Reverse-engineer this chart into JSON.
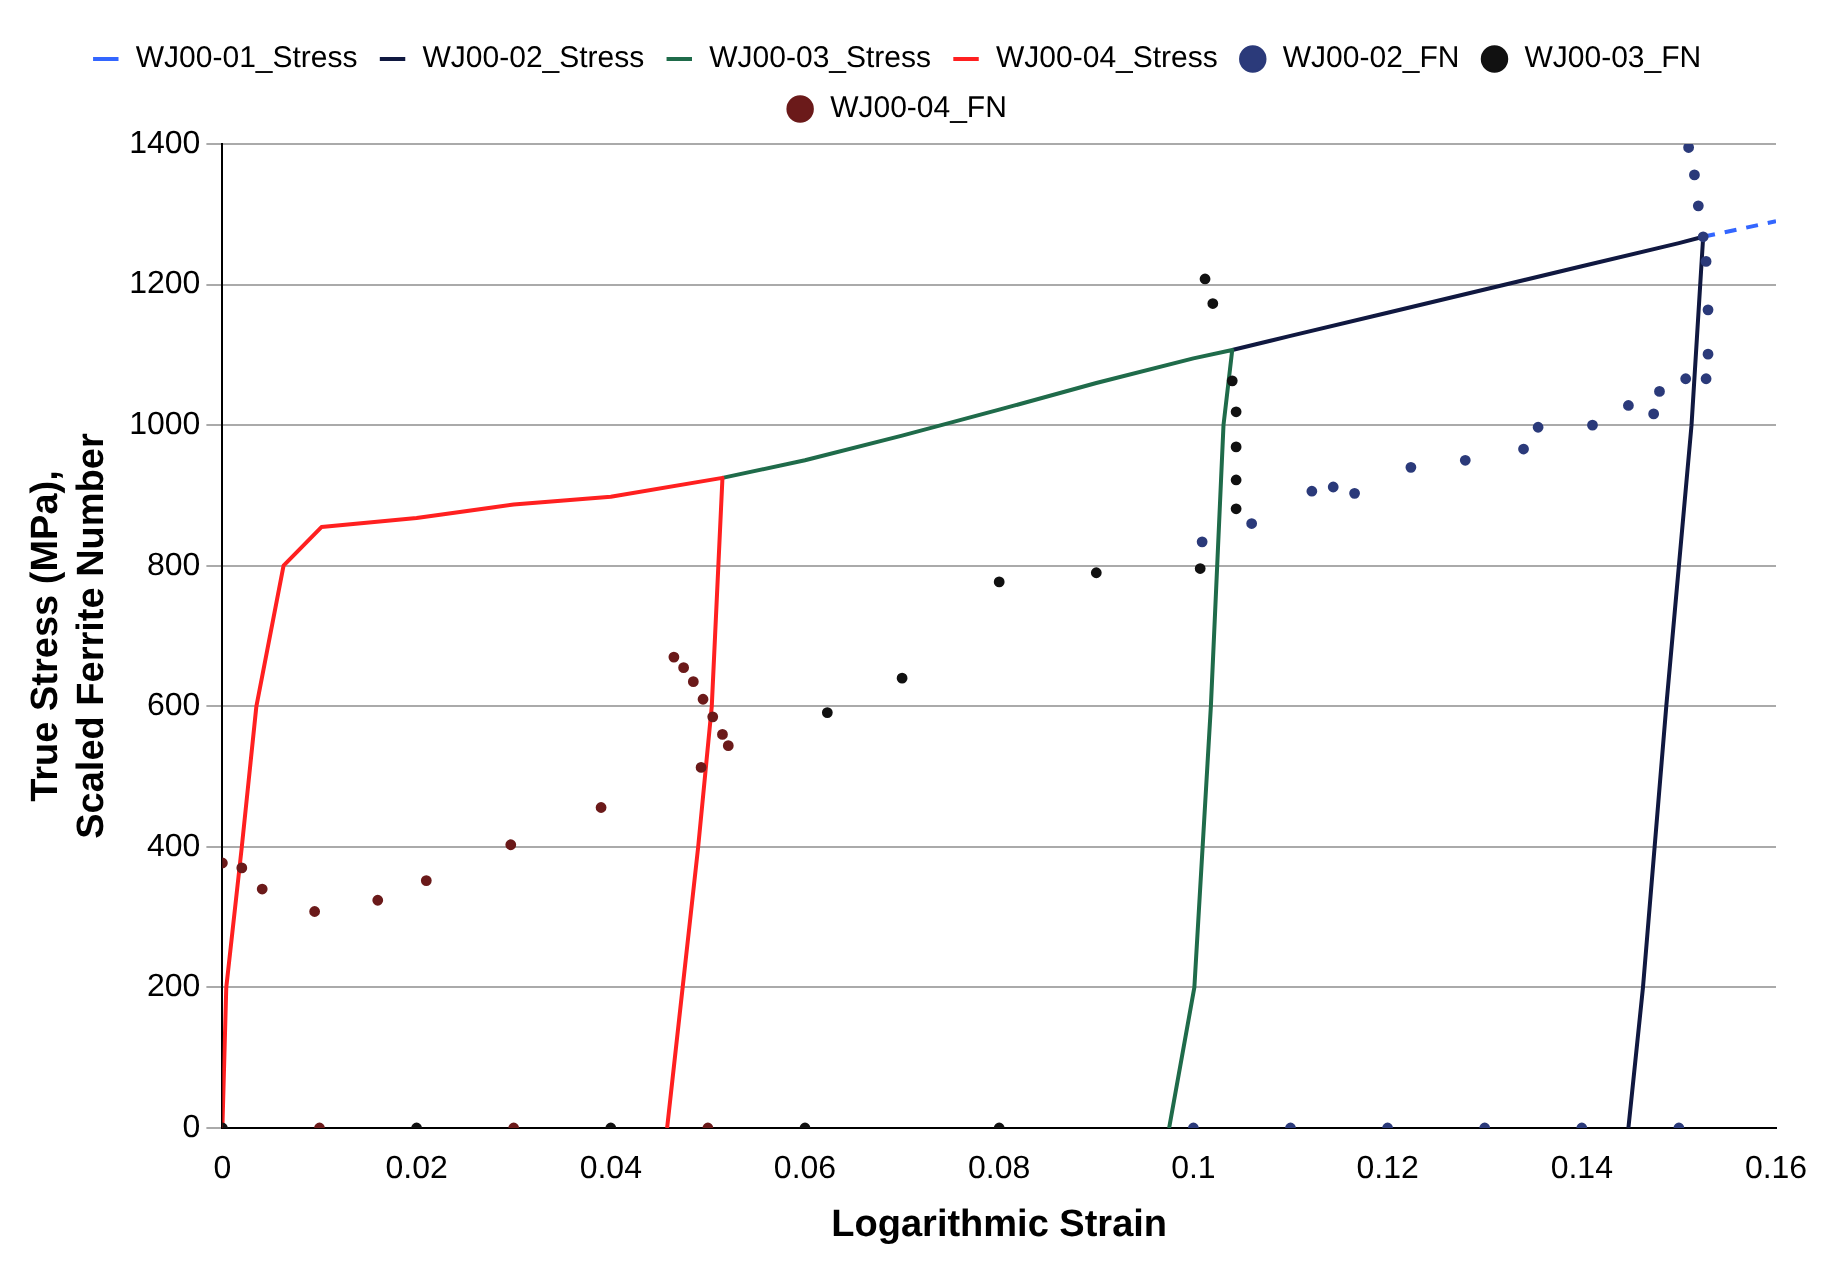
{
  "chart_data": {
    "type": "line",
    "xlabel": "Logarithmic Strain",
    "ylabel": "True Stress (MPa),\nScaled Ferrite Number",
    "xlim": [
      0,
      0.16
    ],
    "xticks": [
      0,
      0.02,
      0.04,
      0.06,
      0.08,
      0.1,
      0.12,
      0.14,
      0.16
    ],
    "ylim": [
      0,
      1400
    ],
    "yticks": [
      0,
      200,
      400,
      600,
      800,
      1000,
      1200,
      1400
    ],
    "grid": "y",
    "legend": "top",
    "series": [
      {
        "name": "WJ00-01_Stress",
        "type": "line",
        "color": "#3366ff",
        "line_style": "dashed",
        "marker": "none",
        "x": [
          0.1525,
          0.16
        ],
        "values": [
          1268,
          1290
        ]
      },
      {
        "name": "WJ00-02_Stress",
        "type": "line",
        "color": "#101840",
        "line_style": "solid",
        "marker": "none",
        "x": [
          0.104,
          0.11,
          0.12,
          0.13,
          0.14,
          0.15,
          0.1525,
          0.1513,
          0.1487,
          0.1463,
          0.1448
        ],
        "values": [
          1107,
          1127,
          1160,
          1193,
          1226,
          1259,
          1268,
          1000,
          600,
          200,
          0
        ]
      },
      {
        "name": "WJ00-03_Stress",
        "type": "line",
        "color": "#1f6b4a",
        "line_style": "solid",
        "marker": "none",
        "x": [
          0.0515,
          0.06,
          0.07,
          0.08,
          0.09,
          0.1,
          0.104,
          0.1031,
          0.1018,
          0.1001,
          0.0975
        ],
        "values": [
          925,
          950,
          985,
          1022,
          1060,
          1095,
          1107,
          1000,
          600,
          200,
          0
        ]
      },
      {
        "name": "WJ00-04_Stress",
        "type": "line",
        "color": "#ff2020",
        "line_style": "solid",
        "marker": "none",
        "x": [
          0,
          0.0004,
          0.002,
          0.0035,
          0.0063,
          0.0102,
          0.02,
          0.03,
          0.04,
          0.0515,
          0.0504,
          0.049,
          0.0458
        ],
        "values": [
          0,
          200,
          400,
          600,
          800,
          855,
          868,
          887,
          898,
          925,
          600,
          400,
          0
        ]
      },
      {
        "name": "WJ00-02_FN",
        "type": "scatter",
        "color": "#2b3a7a",
        "marker": "circle",
        "x": [
          0.1009,
          0.106,
          0.1122,
          0.1144,
          0.1166,
          0.1224,
          0.128,
          0.134,
          0.1355,
          0.1411,
          0.1448,
          0.1474,
          0.148,
          0.1507,
          0.1528,
          0.153,
          0.153,
          0.1528,
          0.1525,
          0.152,
          0.1516,
          0.151,
          0.1,
          0.11,
          0.12,
          0.13,
          0.14,
          0.15
        ],
        "values": [
          834,
          860,
          906,
          912,
          903,
          940,
          950,
          966,
          997,
          1000,
          1028,
          1016,
          1048,
          1066,
          1066,
          1101,
          1164,
          1233,
          1268,
          1312,
          1356,
          1395,
          0,
          0,
          0,
          0,
          0,
          0
        ]
      },
      {
        "name": "WJ00-03_FN",
        "type": "scatter",
        "color": "#111111",
        "marker": "circle",
        "x": [
          0.0623,
          0.07,
          0.08,
          0.09,
          0.1007,
          0.104,
          0.1044,
          0.1044,
          0.1044,
          0.1044,
          0.1012,
          0.102,
          0,
          0.02,
          0.04,
          0.06,
          0.08
        ],
        "values": [
          591,
          640,
          777,
          790,
          796,
          1063,
          1019,
          969,
          922,
          881,
          1208,
          1173,
          0,
          0,
          0,
          0,
          0
        ]
      },
      {
        "name": "WJ00-04_FN",
        "type": "scatter",
        "color": "#6b1a1a",
        "marker": "circle",
        "x": [
          0,
          0.002,
          0.0041,
          0.0095,
          0.016,
          0.021,
          0.0297,
          0.039,
          0.0493,
          0.0521,
          0.0515,
          0.0505,
          0.0495,
          0.0485,
          0.0475,
          0.0465,
          0.01,
          0.03,
          0.05
        ],
        "values": [
          377,
          370,
          340,
          308,
          324,
          352,
          403,
          456,
          513,
          544,
          560,
          585,
          610,
          635,
          655,
          670,
          0,
          0,
          0
        ]
      }
    ]
  }
}
